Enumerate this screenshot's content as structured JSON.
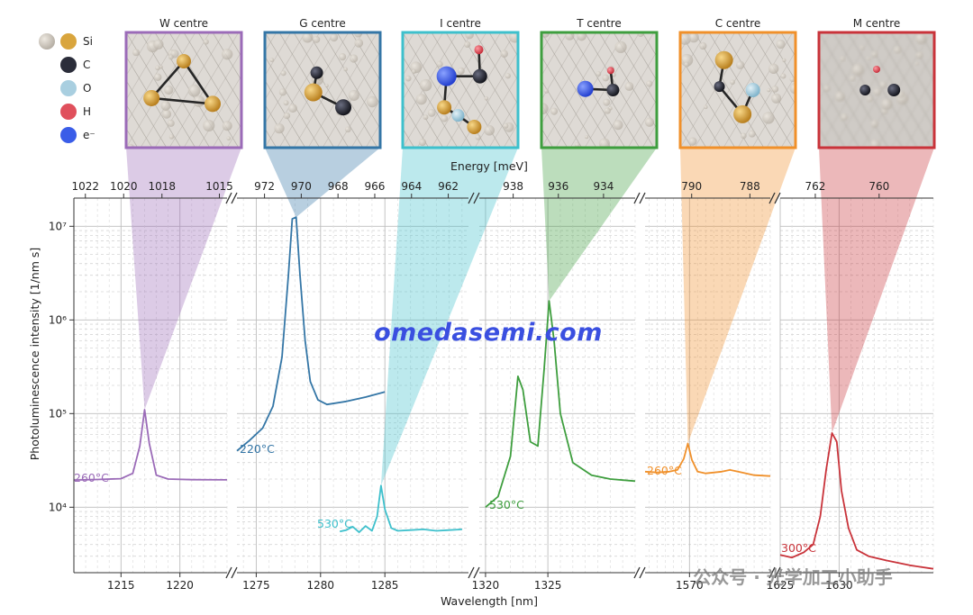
{
  "chart_data": {
    "type": "line",
    "xlabel": "Wavelength [nm]",
    "x2label": "Energy [meV]",
    "ylabel": "Photoluminescence intensity [1/nm s]",
    "yscale": "log",
    "ylim": [
      2000,
      20000000
    ],
    "ytick_labels": [
      "10⁴",
      "10⁵",
      "10⁶",
      "10⁷"
    ],
    "ytick_values": [
      10000,
      100000,
      1000000,
      10000000
    ],
    "grid": true,
    "legend": {
      "placement": "top-left",
      "entries": [
        {
          "label": "Si",
          "color": "#d9a53d"
        },
        {
          "label": "C",
          "color": "#2b2d3a"
        },
        {
          "label": "O",
          "color": "#a9cfe0"
        },
        {
          "label": "H",
          "color": "#e0505c"
        },
        {
          "label": "e⁻",
          "color": "#3a5de8"
        }
      ]
    },
    "panels": [
      {
        "id": "W",
        "title": "W centre",
        "color": "#9b6bb8",
        "temperature_label": "260°C",
        "xlim": [
          1211,
          1224
        ],
        "xticks": [
          1215,
          1220
        ],
        "energy_ticks": [
          1022,
          1020,
          1018,
          1015
        ],
        "series": {
          "name": "260°C",
          "x": [
            1211,
            1213,
            1215,
            1216,
            1216.6,
            1217,
            1217.4,
            1218,
            1219,
            1221,
            1224
          ],
          "y": [
            19500,
            19800,
            20200,
            23000,
            45000,
            110000,
            48000,
            22000,
            20000,
            19700,
            19600
          ]
        }
      },
      {
        "id": "G",
        "title": "G centre",
        "color": "#3476a6",
        "temperature_label": "220°C",
        "xlim": [
          1273.5,
          1291.5
        ],
        "xticks": [
          1275,
          1280,
          1285
        ],
        "energy_ticks": [
          972,
          970,
          968,
          966
        ],
        "series": {
          "name": "220°C",
          "x": [
            1273.5,
            1274.5,
            1275.5,
            1276.3,
            1277,
            1277.5,
            1277.8,
            1278.1,
            1278.4,
            1278.8,
            1279.2,
            1279.8,
            1280.5,
            1282,
            1283.5,
            1285
          ],
          "y": [
            40000,
            52000,
            70000,
            120000,
            400000,
            3000000,
            12000000,
            12500000,
            3000000,
            600000,
            220000,
            140000,
            125000,
            135000,
            150000,
            170000
          ]
        }
      },
      {
        "id": "I",
        "title": "I centre",
        "color": "#3ec0cc",
        "temperature_label": "530°C",
        "xlim": [
          1273.5,
          1291.5
        ],
        "xticks": [
          1285
        ],
        "energy_ticks": [
          964,
          962
        ],
        "series": {
          "name": "530°C",
          "x": [
            1281.5,
            1282,
            1282.5,
            1283,
            1283.5,
            1284,
            1284.4,
            1284.7,
            1285,
            1285.5,
            1286,
            1287,
            1288,
            1289,
            1290,
            1291
          ],
          "y": [
            5500,
            5700,
            6200,
            5400,
            6300,
            5600,
            8000,
            17000,
            9500,
            6000,
            5600,
            5700,
            5800,
            5600,
            5700,
            5800
          ]
        }
      },
      {
        "id": "T",
        "title": "T centre",
        "color": "#3e9e3e",
        "temperature_label": "530°C",
        "xlim": [
          1319.5,
          1332
        ],
        "xticks": [
          1320,
          1325
        ],
        "energy_ticks": [
          938,
          936,
          934
        ],
        "series": {
          "name": "530°C",
          "x": [
            1320,
            1321,
            1322,
            1322.6,
            1323,
            1323.6,
            1324.2,
            1324.7,
            1325.1,
            1325.5,
            1326,
            1327,
            1328.5,
            1330,
            1332
          ],
          "y": [
            10000,
            13000,
            35000,
            250000,
            180000,
            50000,
            45000,
            300000,
            1600000,
            600000,
            100000,
            30000,
            22000,
            20000,
            19000
          ]
        }
      },
      {
        "id": "C",
        "title": "C centre",
        "color": "#f0902a",
        "temperature_label": "260°C",
        "xlim": [
          1564.5,
          1580
        ],
        "xticks": [
          1570
        ],
        "energy_ticks": [
          790,
          788
        ],
        "series": {
          "name": "260°C",
          "x": [
            1564.5,
            1566,
            1567.5,
            1568.5,
            1569.3,
            1569.8,
            1570.3,
            1571,
            1572,
            1574,
            1575,
            1576,
            1578,
            1580
          ],
          "y": [
            24000,
            23500,
            24000,
            25000,
            33000,
            48000,
            32000,
            24000,
            23000,
            24000,
            25000,
            24000,
            22000,
            21500
          ]
        }
      },
      {
        "id": "M",
        "title": "M centre",
        "color": "#c9333a",
        "temperature_label": "300°C",
        "xlim": [
          1625,
          1638
        ],
        "xticks": [
          1625,
          1630
        ],
        "energy_ticks": [
          762,
          760
        ],
        "series": {
          "name": "300°C",
          "x": [
            1625,
            1626,
            1627,
            1627.8,
            1628.4,
            1628.9,
            1629.4,
            1629.8,
            1630.2,
            1630.8,
            1631.5,
            1632.5,
            1634,
            1636,
            1638
          ],
          "y": [
            3100,
            2900,
            3300,
            4000,
            8000,
            25000,
            62000,
            50000,
            15000,
            6000,
            3500,
            3000,
            2700,
            2400,
            2200
          ]
        }
      }
    ]
  },
  "watermark": {
    "text": "omedasemi.com",
    "wechat_text": "公众号 · 光学加工小助手"
  }
}
